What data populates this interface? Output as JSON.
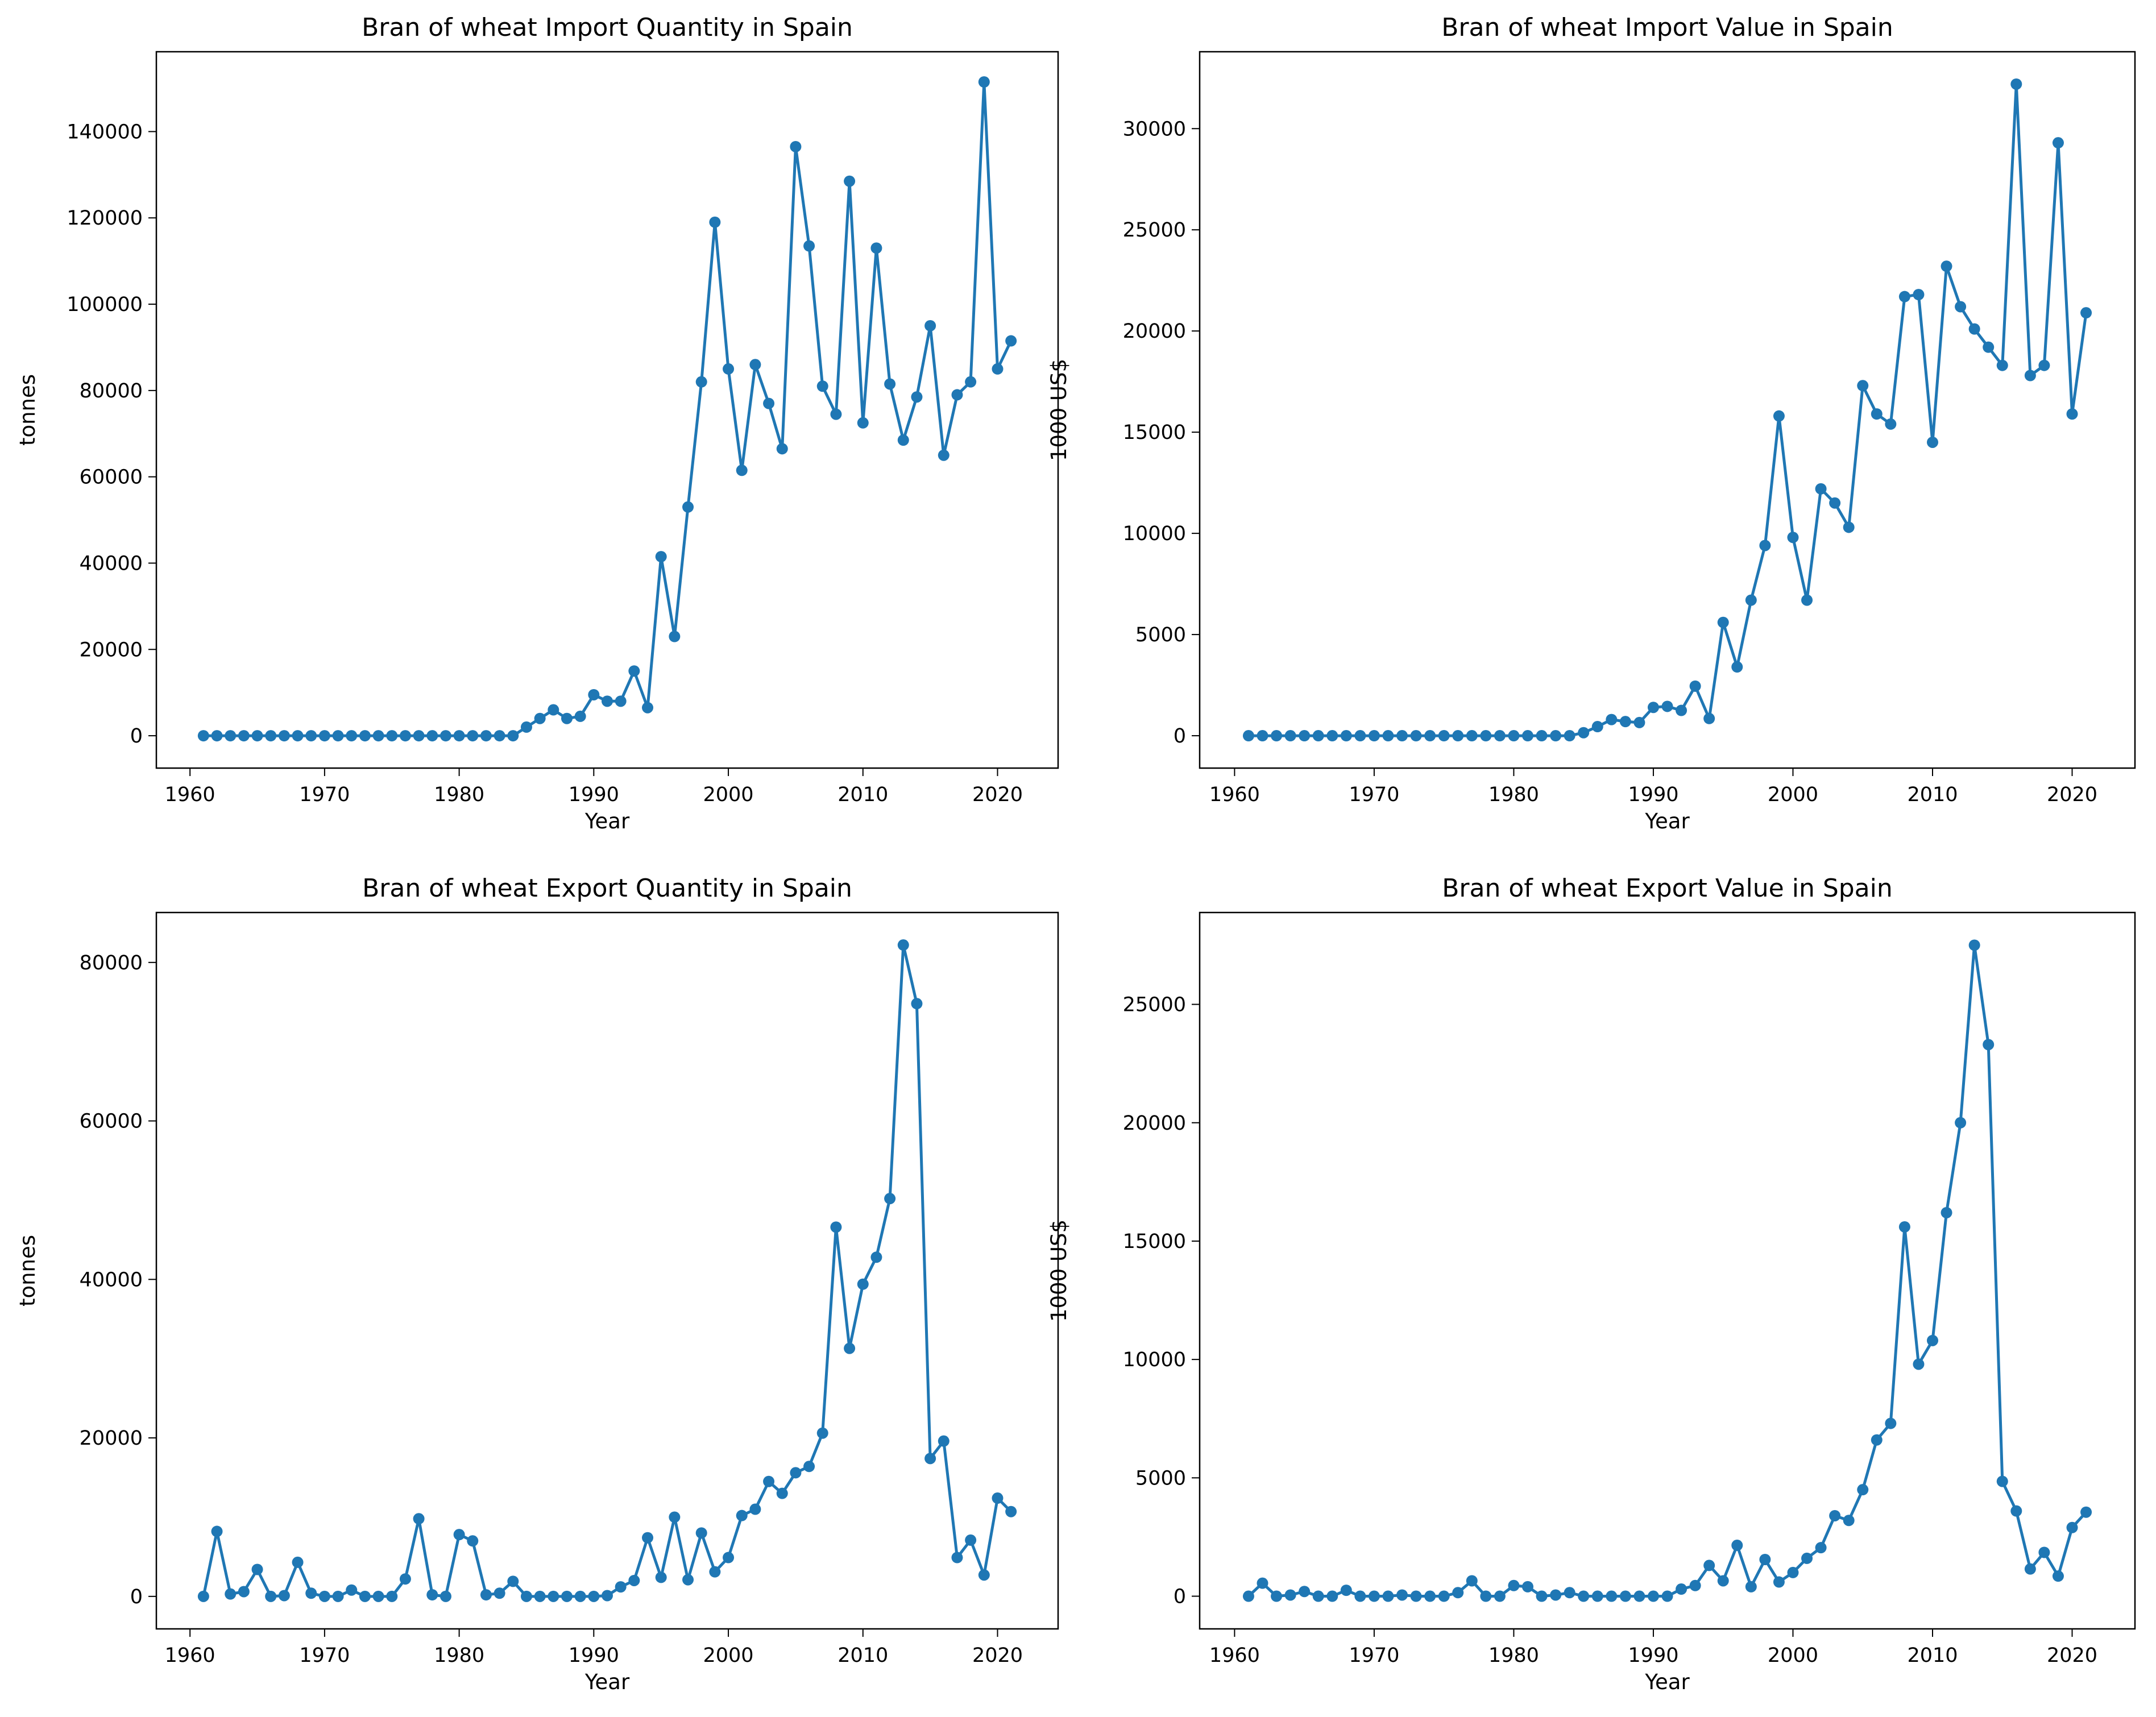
{
  "chart_data": [
    {
      "type": "line",
      "title": "Bran of wheat Import Quantity in Spain",
      "xlabel": "Year",
      "ylabel": "tonnes",
      "xlim": [
        1957.5,
        2024.5
      ],
      "ylim": [
        -7500,
        158500
      ],
      "xticks": [
        1960,
        1970,
        1980,
        1990,
        2000,
        2010,
        2020
      ],
      "yticks": [
        0,
        20000,
        40000,
        60000,
        80000,
        100000,
        120000,
        140000
      ],
      "series": [
        {
          "color": "#1f77b4",
          "x": [
            1961,
            1962,
            1963,
            1964,
            1965,
            1966,
            1967,
            1968,
            1969,
            1970,
            1971,
            1972,
            1973,
            1974,
            1975,
            1976,
            1977,
            1978,
            1979,
            1980,
            1981,
            1982,
            1983,
            1984,
            1985,
            1986,
            1987,
            1988,
            1989,
            1990,
            1991,
            1992,
            1993,
            1994,
            1995,
            1996,
            1997,
            1998,
            1999,
            2000,
            2001,
            2002,
            2003,
            2004,
            2005,
            2006,
            2007,
            2008,
            2009,
            2010,
            2011,
            2012,
            2013,
            2014,
            2015,
            2016,
            2017,
            2018,
            2019,
            2020,
            2021
          ],
          "values": [
            0,
            0,
            0,
            0,
            0,
            0,
            0,
            0,
            0,
            0,
            0,
            0,
            0,
            0,
            0,
            0,
            0,
            0,
            0,
            0,
            0,
            0,
            0,
            0,
            2000,
            4000,
            6000,
            4000,
            4500,
            9500,
            8000,
            8000,
            15000,
            6500,
            41500,
            23000,
            53000,
            82000,
            119000,
            85000,
            61500,
            86000,
            77000,
            66500,
            136500,
            113500,
            81000,
            74500,
            128500,
            72500,
            113000,
            81500,
            68500,
            78500,
            95000,
            65000,
            79000,
            82000,
            151500,
            85000,
            91500
          ]
        }
      ]
    },
    {
      "type": "line",
      "title": "Bran of wheat Import Value in Spain",
      "xlabel": "Year",
      "ylabel": "1000 US$",
      "xlim": [
        1957.5,
        2024.5
      ],
      "ylim": [
        -1600,
        33800
      ],
      "xticks": [
        1960,
        1970,
        1980,
        1990,
        2000,
        2010,
        2020
      ],
      "yticks": [
        0,
        5000,
        10000,
        15000,
        20000,
        25000,
        30000
      ],
      "series": [
        {
          "color": "#1f77b4",
          "x": [
            1961,
            1962,
            1963,
            1964,
            1965,
            1966,
            1967,
            1968,
            1969,
            1970,
            1971,
            1972,
            1973,
            1974,
            1975,
            1976,
            1977,
            1978,
            1979,
            1980,
            1981,
            1982,
            1983,
            1984,
            1985,
            1986,
            1987,
            1988,
            1989,
            1990,
            1991,
            1992,
            1993,
            1994,
            1995,
            1996,
            1997,
            1998,
            1999,
            2000,
            2001,
            2002,
            2003,
            2004,
            2005,
            2006,
            2007,
            2008,
            2009,
            2010,
            2011,
            2012,
            2013,
            2014,
            2015,
            2016,
            2017,
            2018,
            2019,
            2020,
            2021
          ],
          "values": [
            0,
            0,
            0,
            0,
            0,
            0,
            0,
            0,
            0,
            0,
            0,
            0,
            0,
            0,
            0,
            0,
            0,
            0,
            0,
            0,
            0,
            0,
            0,
            0,
            150,
            450,
            800,
            700,
            650,
            1400,
            1450,
            1250,
            2450,
            850,
            5600,
            3400,
            6700,
            9400,
            15800,
            9800,
            6700,
            12200,
            11500,
            10300,
            17300,
            15900,
            15400,
            21700,
            21800,
            14500,
            23200,
            21200,
            20100,
            19200,
            18300,
            32200,
            17800,
            18300,
            29300,
            15900,
            20900
          ]
        }
      ]
    },
    {
      "type": "line",
      "title": "Bran of wheat Export Quantity in Spain",
      "xlabel": "Year",
      "ylabel": "tonnes",
      "xlim": [
        1957.5,
        2024.5
      ],
      "ylim": [
        -4100,
        86300
      ],
      "xticks": [
        1960,
        1970,
        1980,
        1990,
        2000,
        2010,
        2020
      ],
      "yticks": [
        0,
        20000,
        40000,
        60000,
        80000
      ],
      "series": [
        {
          "color": "#1f77b4",
          "x": [
            1961,
            1962,
            1963,
            1964,
            1965,
            1966,
            1967,
            1968,
            1969,
            1970,
            1971,
            1972,
            1973,
            1974,
            1975,
            1976,
            1977,
            1978,
            1979,
            1980,
            1981,
            1982,
            1983,
            1984,
            1985,
            1986,
            1987,
            1988,
            1989,
            1990,
            1991,
            1992,
            1993,
            1994,
            1995,
            1996,
            1997,
            1998,
            1999,
            2000,
            2001,
            2002,
            2003,
            2004,
            2005,
            2006,
            2007,
            2008,
            2009,
            2010,
            2011,
            2012,
            2013,
            2014,
            2015,
            2016,
            2017,
            2018,
            2019,
            2020,
            2021
          ],
          "values": [
            0,
            8200,
            300,
            600,
            3400,
            0,
            100,
            4300,
            400,
            0,
            0,
            800,
            0,
            0,
            0,
            2200,
            9800,
            200,
            0,
            7800,
            7000,
            200,
            400,
            1900,
            0,
            0,
            0,
            0,
            0,
            0,
            100,
            1200,
            2000,
            7400,
            2400,
            10000,
            2100,
            8000,
            3100,
            4900,
            10200,
            11000,
            14500,
            13000,
            15600,
            16400,
            20600,
            46600,
            31300,
            39400,
            42800,
            50200,
            82200,
            74800,
            17400,
            19600,
            4900,
            7100,
            2700,
            12400,
            10700
          ]
        }
      ]
    },
    {
      "type": "line",
      "title": "Bran of wheat Export Value in Spain",
      "xlabel": "Year",
      "ylabel": "1000 US$",
      "xlim": [
        1957.5,
        2024.5
      ],
      "ylim": [
        -1380,
        28880
      ],
      "xticks": [
        1960,
        1970,
        1980,
        1990,
        2000,
        2010,
        2020
      ],
      "yticks": [
        0,
        5000,
        10000,
        15000,
        20000,
        25000
      ],
      "series": [
        {
          "color": "#1f77b4",
          "x": [
            1961,
            1962,
            1963,
            1964,
            1965,
            1966,
            1967,
            1968,
            1969,
            1970,
            1971,
            1972,
            1973,
            1974,
            1975,
            1976,
            1977,
            1978,
            1979,
            1980,
            1981,
            1982,
            1983,
            1984,
            1985,
            1986,
            1987,
            1988,
            1989,
            1990,
            1991,
            1992,
            1993,
            1994,
            1995,
            1996,
            1997,
            1998,
            1999,
            2000,
            2001,
            2002,
            2003,
            2004,
            2005,
            2006,
            2007,
            2008,
            2009,
            2010,
            2011,
            2012,
            2013,
            2014,
            2015,
            2016,
            2017,
            2018,
            2019,
            2020,
            2021
          ],
          "values": [
            0,
            550,
            0,
            50,
            200,
            0,
            0,
            250,
            0,
            0,
            0,
            50,
            0,
            0,
            0,
            150,
            650,
            0,
            0,
            450,
            400,
            0,
            50,
            150,
            0,
            0,
            0,
            0,
            0,
            0,
            0,
            300,
            450,
            1300,
            650,
            2150,
            400,
            1550,
            600,
            1000,
            1600,
            2050,
            3400,
            3200,
            4500,
            6600,
            7300,
            15600,
            9800,
            10800,
            16200,
            20000,
            27500,
            23300,
            4850,
            3600,
            1150,
            1850,
            850,
            2900,
            3550
          ]
        }
      ]
    }
  ]
}
